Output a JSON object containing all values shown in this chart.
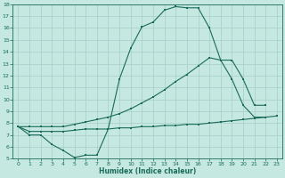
{
  "xlabel": "Humidex (Indice chaleur)",
  "xlim": [
    -0.5,
    23.5
  ],
  "ylim": [
    5,
    18
  ],
  "xticks": [
    0,
    1,
    2,
    3,
    4,
    5,
    6,
    7,
    8,
    9,
    10,
    11,
    12,
    13,
    14,
    15,
    16,
    17,
    18,
    19,
    20,
    21,
    22,
    23
  ],
  "yticks": [
    5,
    6,
    7,
    8,
    9,
    10,
    11,
    12,
    13,
    14,
    15,
    16,
    17,
    18
  ],
  "bg_color": "#c5e8e0",
  "line_color": "#1a6b5a",
  "grid_color": "#a8ccca",
  "c1x": [
    0,
    1,
    2,
    3,
    4,
    5,
    6,
    7,
    8,
    9,
    10,
    11,
    12,
    13,
    14,
    15,
    16,
    17,
    18,
    19,
    20,
    21,
    22
  ],
  "c1y": [
    7.7,
    7.0,
    7.0,
    6.2,
    5.7,
    5.1,
    5.3,
    5.3,
    7.5,
    11.7,
    14.3,
    16.1,
    16.5,
    17.5,
    17.8,
    17.7,
    17.7,
    16.0,
    13.3,
    11.7,
    9.5,
    8.5,
    8.5
  ],
  "c2x": [
    0,
    1,
    2,
    3,
    4,
    5,
    6,
    7,
    8,
    9,
    10,
    11,
    12,
    13,
    14,
    15,
    16,
    17,
    18,
    19,
    20,
    21,
    22
  ],
  "c2y": [
    7.7,
    7.7,
    7.7,
    7.7,
    7.7,
    7.9,
    8.1,
    8.3,
    8.5,
    8.8,
    9.2,
    9.7,
    10.2,
    10.8,
    11.5,
    12.1,
    12.8,
    13.5,
    13.3,
    13.3,
    11.7,
    9.5,
    9.5
  ],
  "c3x": [
    0,
    1,
    2,
    3,
    4,
    5,
    6,
    7,
    8,
    9,
    10,
    11,
    12,
    13,
    14,
    15,
    16,
    17,
    18,
    19,
    20,
    21,
    22,
    23
  ],
  "c3y": [
    7.7,
    7.3,
    7.3,
    7.3,
    7.3,
    7.4,
    7.5,
    7.5,
    7.5,
    7.6,
    7.6,
    7.7,
    7.7,
    7.8,
    7.8,
    7.9,
    7.9,
    8.0,
    8.1,
    8.2,
    8.3,
    8.4,
    8.5,
    8.6
  ]
}
